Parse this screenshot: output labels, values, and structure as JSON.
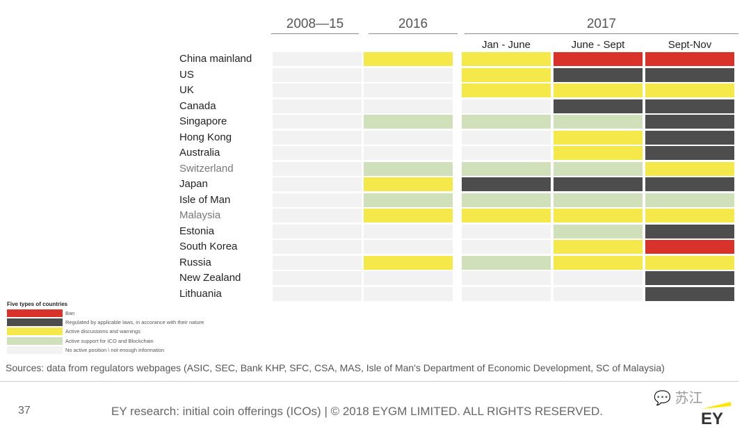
{
  "chart_data": {
    "type": "table",
    "period_headers": [
      "2008—15",
      "2016",
      "2017"
    ],
    "subperiod_headers": [
      "Jan - June",
      "June - Sept",
      "Sept-Nov"
    ],
    "columns": [
      "2008—15",
      "2016",
      "Jan - June",
      "June - Sept",
      "Sept-Nov"
    ],
    "status_colors": {
      "ban": "#d9322b",
      "regulated": "#4d4d4d",
      "warnings": "#f5e84a",
      "support": "#cfe0bb",
      "none": "#f2f2f2"
    },
    "rows": [
      {
        "country": "China mainland",
        "muted": false,
        "status": [
          "none",
          "warnings",
          "warnings",
          "ban",
          "ban"
        ]
      },
      {
        "country": "US",
        "muted": false,
        "status": [
          "none",
          "none",
          "warnings",
          "regulated",
          "regulated"
        ]
      },
      {
        "country": "UK",
        "muted": false,
        "status": [
          "none",
          "none",
          "warnings",
          "warnings",
          "warnings"
        ]
      },
      {
        "country": "Canada",
        "muted": false,
        "status": [
          "none",
          "none",
          "none",
          "regulated",
          "regulated"
        ]
      },
      {
        "country": "Singapore",
        "muted": false,
        "status": [
          "none",
          "support",
          "support",
          "support",
          "regulated"
        ]
      },
      {
        "country": "Hong Kong",
        "muted": false,
        "status": [
          "none",
          "none",
          "none",
          "warnings",
          "regulated"
        ]
      },
      {
        "country": "Australia",
        "muted": false,
        "status": [
          "none",
          "none",
          "none",
          "warnings",
          "regulated"
        ]
      },
      {
        "country": "Switzerland",
        "muted": true,
        "status": [
          "none",
          "support",
          "support",
          "support",
          "warnings"
        ]
      },
      {
        "country": "Japan",
        "muted": false,
        "status": [
          "none",
          "warnings",
          "regulated",
          "regulated",
          "regulated"
        ]
      },
      {
        "country": "Isle of Man",
        "muted": false,
        "status": [
          "none",
          "support",
          "support",
          "support",
          "support"
        ]
      },
      {
        "country": "Malaysia",
        "muted": true,
        "status": [
          "none",
          "warnings",
          "warnings",
          "warnings",
          "warnings"
        ]
      },
      {
        "country": "Estonia",
        "muted": false,
        "status": [
          "none",
          "none",
          "none",
          "support",
          "regulated"
        ]
      },
      {
        "country": "South Korea",
        "muted": false,
        "status": [
          "none",
          "none",
          "none",
          "warnings",
          "ban"
        ]
      },
      {
        "country": "Russia",
        "muted": false,
        "status": [
          "none",
          "warnings",
          "support",
          "warnings",
          "warnings"
        ]
      },
      {
        "country": "New Zealand",
        "muted": false,
        "status": [
          "none",
          "none",
          "none",
          "none",
          "regulated"
        ]
      },
      {
        "country": "Lithuania",
        "muted": false,
        "status": [
          "none",
          "none",
          "none",
          "none",
          "regulated"
        ]
      }
    ],
    "legend": {
      "title": "Five types of  countries",
      "entries": [
        {
          "key": "ban",
          "label": "Ban"
        },
        {
          "key": "regulated",
          "label": "Regulated by applicable laws, in accorance with their nature"
        },
        {
          "key": "warnings",
          "label": "Active discussions and warnings"
        },
        {
          "key": "support",
          "label": "Active support for ICO and Blockchain"
        },
        {
          "key": "none",
          "label": "No active position \\ not enough information"
        }
      ]
    }
  },
  "sources": "Sources: data from regulators webpages (ASIC, SEC, Bank KHP, SFC, CSA, MAS, Isle of Man's Department of Economic Development, SC of Malaysia)",
  "footer": {
    "page_number": "37",
    "text": "EY research: initial coin offerings (ICOs) | © 2018 EYGM LIMITED. ALL RIGHTS RESERVED.",
    "wechat_label": "苏江",
    "logo_text": "EY"
  }
}
